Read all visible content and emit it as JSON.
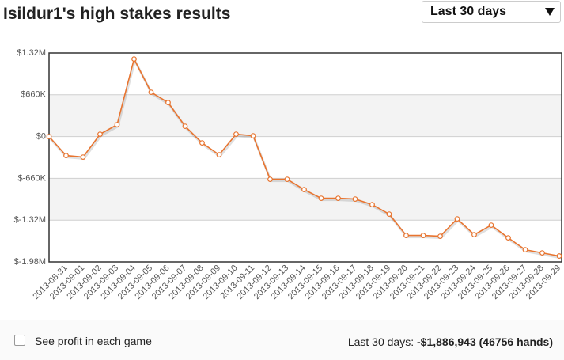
{
  "header": {
    "title": "Isildur1's high stakes results",
    "dropdown": "Last 30 days"
  },
  "chart_data": {
    "type": "line",
    "categories": [
      null,
      "2013-08-31",
      "2013-09-01",
      "2013-09-02",
      "2013-09-03",
      "2013-09-04",
      "2013-09-05",
      "2013-09-06",
      "2013-09-07",
      "2013-09-08",
      "2013-09-09",
      "2013-09-10",
      "2013-09-11",
      "2013-09-12",
      "2013-09-13",
      "2013-09-14",
      "2013-09-15",
      "2013-09-16",
      "2013-09-17",
      "2013-09-18",
      "2013-09-19",
      "2013-09-20",
      "2013-09-21",
      "2013-09-22",
      "2013-09-23",
      "2013-09-24",
      "2013-09-25",
      "2013-09-26",
      "2013-09-27",
      "2013-09-28",
      "2013-09-29"
    ],
    "values": [
      0,
      -300000,
      -325000,
      37500,
      187500,
      1225000,
      700000,
      537500,
      162500,
      -100000,
      -287500,
      37500,
      12500,
      -675000,
      -675000,
      -837500,
      -975000,
      -975000,
      -987500,
      -1075000,
      -1225000,
      -1562500,
      -1562500,
      -1575000,
      -1300000,
      -1550000,
      -1400000,
      -1600000,
      -1787500,
      -1837500,
      -1886943
    ],
    "color": "#e8742f",
    "ylim": [
      -1980000,
      1320000
    ],
    "yticks": [
      {
        "value": -1980000,
        "label": "$-1.98M"
      },
      {
        "value": -1320000,
        "label": "$-1.32M"
      },
      {
        "value": -660000,
        "label": "$-660K"
      },
      {
        "value": 0,
        "label": "$0"
      },
      {
        "value": 660000,
        "label": "$660K"
      },
      {
        "value": 1320000,
        "label": "$1.32M"
      }
    ],
    "grid": true
  },
  "footer": {
    "checkbox_label": "See profit in each game",
    "summary_label": "Last 30 days:",
    "summary_value": "-$1,886,943 (46756 hands)"
  }
}
